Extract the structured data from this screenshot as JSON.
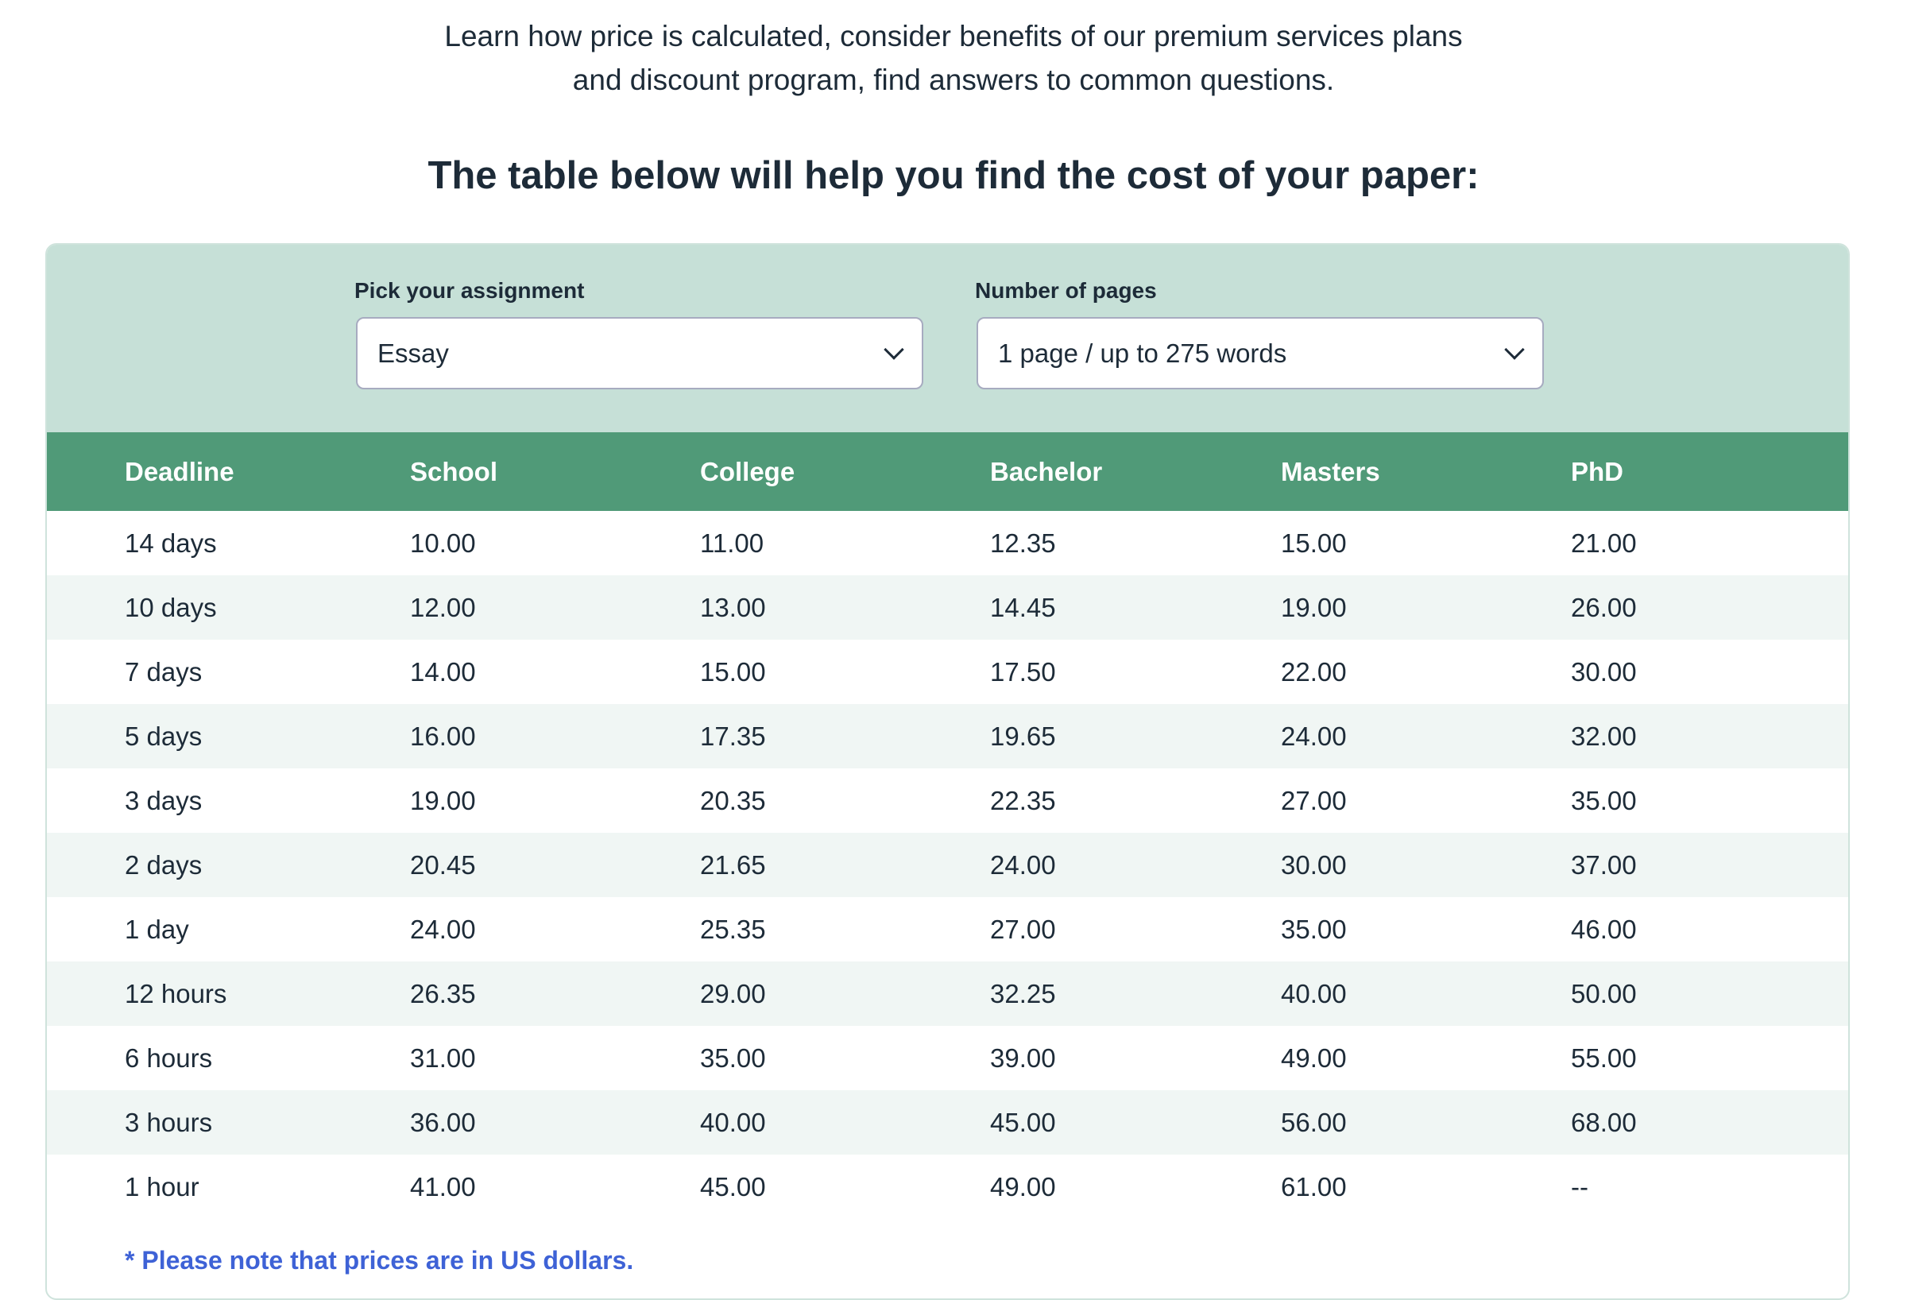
{
  "intro": {
    "line1": "Learn how price is calculated, consider benefits of our premium services plans",
    "line2": "and discount program, find answers to common questions."
  },
  "heading": "The table below will help you find the cost of your paper:",
  "filters": {
    "assignment": {
      "label": "Pick your assignment",
      "value": "Essay"
    },
    "pages": {
      "label": "Number of pages",
      "value": "1 page / up to 275 words"
    }
  },
  "table": {
    "headers": [
      "Deadline",
      "School",
      "College",
      "Bachelor",
      "Masters",
      "PhD"
    ],
    "rows": [
      [
        "14 days",
        "10.00",
        "11.00",
        "12.35",
        "15.00",
        "21.00"
      ],
      [
        "10 days",
        "12.00",
        "13.00",
        "14.45",
        "19.00",
        "26.00"
      ],
      [
        "7 days",
        "14.00",
        "15.00",
        "17.50",
        "22.00",
        "30.00"
      ],
      [
        "5 days",
        "16.00",
        "17.35",
        "19.65",
        "24.00",
        "32.00"
      ],
      [
        "3 days",
        "19.00",
        "20.35",
        "22.35",
        "27.00",
        "35.00"
      ],
      [
        "2 days",
        "20.45",
        "21.65",
        "24.00",
        "30.00",
        "37.00"
      ],
      [
        "1 day",
        "24.00",
        "25.35",
        "27.00",
        "35.00",
        "46.00"
      ],
      [
        "12 hours",
        "26.35",
        "29.00",
        "32.25",
        "40.00",
        "50.00"
      ],
      [
        "6 hours",
        "31.00",
        "35.00",
        "39.00",
        "49.00",
        "55.00"
      ],
      [
        "3 hours",
        "36.00",
        "40.00",
        "45.00",
        "56.00",
        "68.00"
      ],
      [
        "1 hour",
        "41.00",
        "45.00",
        "49.00",
        "61.00",
        "--"
      ]
    ]
  },
  "note": "* Please note that prices are in US dollars.",
  "colors": {
    "filter_bg": "#c6e0d7",
    "header_bg": "#509a78",
    "stripe": "#f0f6f4",
    "note": "#3e62d6"
  }
}
